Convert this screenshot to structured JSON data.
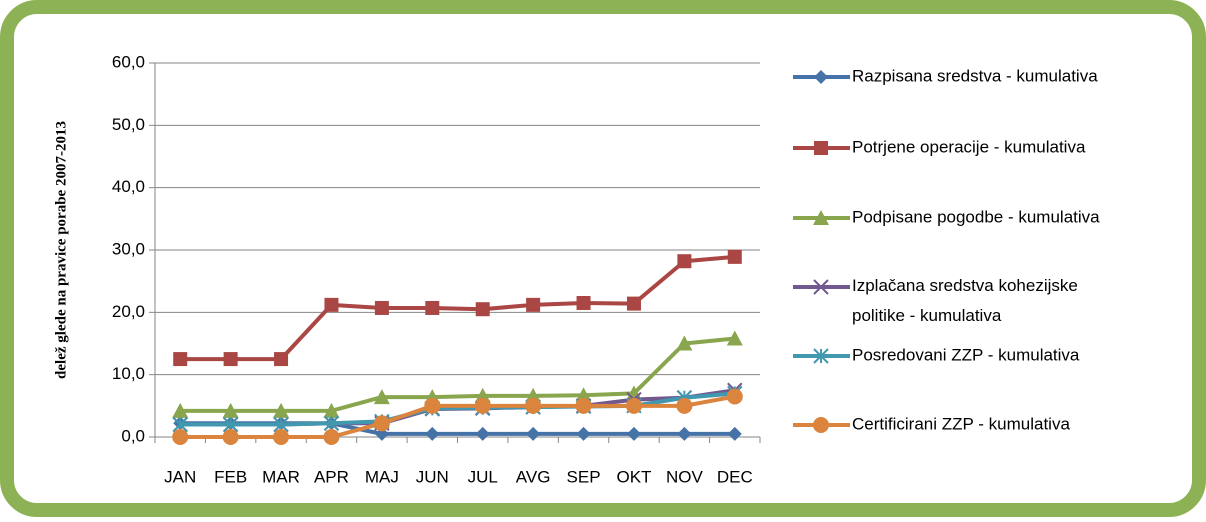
{
  "chart_data": {
    "type": "line",
    "y_label": "delež glede na pravice porabe 2007-2013",
    "categories": [
      "JAN",
      "FEB",
      "MAR",
      "APR",
      "MAJ",
      "JUN",
      "JUL",
      "AVG",
      "SEP",
      "OKT",
      "NOV",
      "DEC"
    ],
    "ylim": [
      0,
      60
    ],
    "yticks": [
      {
        "value": 0,
        "label": "0,0"
      },
      {
        "value": 10,
        "label": "10,0"
      },
      {
        "value": 20,
        "label": "20,0"
      },
      {
        "value": 30,
        "label": "30,0"
      },
      {
        "value": 40,
        "label": "40,0"
      },
      {
        "value": 50,
        "label": "50,0"
      },
      {
        "value": 60,
        "label": "60,0"
      }
    ],
    "grid": true,
    "legend": "right",
    "series": [
      {
        "name": "Razpisana sredstva - kumulativa",
        "color": "#4572a7",
        "marker": "diamond",
        "values": [
          2.2,
          2.2,
          2.2,
          2.2,
          0.5,
          0.5,
          0.5,
          0.5,
          0.5,
          0.5,
          0.5,
          0.5
        ]
      },
      {
        "name": "Potrjene operacije - kumulativa",
        "color": "#aa4643",
        "marker": "square",
        "values": [
          12.5,
          12.5,
          12.5,
          21.2,
          20.7,
          20.7,
          20.5,
          21.2,
          21.5,
          21.4,
          28.2,
          28.9
        ]
      },
      {
        "name": "Podpisane pogodbe - kumulativa",
        "color": "#89a54e",
        "marker": "triangle",
        "values": [
          4.2,
          4.2,
          4.2,
          4.2,
          6.4,
          6.4,
          6.6,
          6.6,
          6.7,
          7.0,
          15.0,
          15.8
        ]
      },
      {
        "name": "Izplačana sredstva kohezijske politike - kumulativa",
        "color": "#71588f",
        "marker": "x",
        "values": [
          2.0,
          2.0,
          2.0,
          2.2,
          2.2,
          4.5,
          4.6,
          4.8,
          5.0,
          6.0,
          6.3,
          7.5
        ]
      },
      {
        "name": "Posredovani ZZP - kumulativa",
        "color": "#4198af",
        "marker": "star",
        "values": [
          2.0,
          2.0,
          2.0,
          2.2,
          2.5,
          4.6,
          4.7,
          4.8,
          4.9,
          5.0,
          6.3,
          7.0
        ]
      },
      {
        "name": "Certificirani ZZP - kumulativa",
        "color": "#db843d",
        "marker": "circle",
        "values": [
          0,
          0,
          0,
          0,
          2.2,
          5.0,
          5.0,
          5.0,
          5.0,
          5.0,
          5.0,
          6.5
        ]
      }
    ]
  }
}
